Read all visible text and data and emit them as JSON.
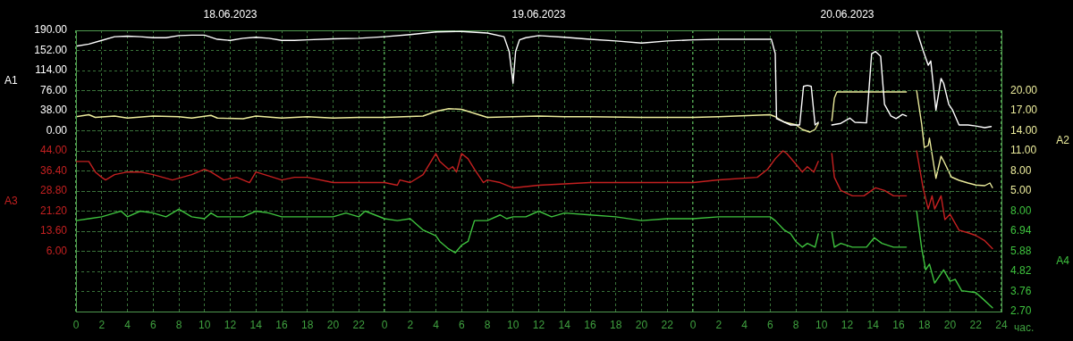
{
  "chart_data": [
    {
      "type": "line",
      "xlabel": "час.",
      "ylabel": "A1",
      "y2label": "A2",
      "xlim": [
        "2023-06-18T00:00",
        "2023-06-21T00:00"
      ],
      "xticks": [
        {
          "value": "2023-06-18T00:00",
          "label": "0"
        },
        {
          "value": "2023-06-18T02:00",
          "label": "2"
        },
        {
          "value": "2023-06-18T04:00",
          "label": "4"
        },
        {
          "value": "2023-06-18T06:00",
          "label": "6"
        },
        {
          "value": "2023-06-18T08:00",
          "label": "8"
        },
        {
          "value": "2023-06-18T10:00",
          "label": "10"
        },
        {
          "value": "2023-06-18T12:00",
          "label": "12"
        },
        {
          "value": "2023-06-18T14:00",
          "label": "14"
        },
        {
          "value": "2023-06-18T16:00",
          "label": "16"
        },
        {
          "value": "2023-06-18T18:00",
          "label": "18"
        },
        {
          "value": "2023-06-18T20:00",
          "label": "20"
        },
        {
          "value": "2023-06-18T22:00",
          "label": "22"
        },
        {
          "value": "2023-06-19T00:00",
          "label": "0"
        },
        {
          "value": "2023-06-19T02:00",
          "label": "2"
        },
        {
          "value": "2023-06-19T04:00",
          "label": "4"
        },
        {
          "value": "2023-06-19T06:00",
          "label": "6"
        },
        {
          "value": "2023-06-19T08:00",
          "label": "8"
        },
        {
          "value": "2023-06-19T10:00",
          "label": "10"
        },
        {
          "value": "2023-06-19T12:00",
          "label": "12"
        },
        {
          "value": "2023-06-19T14:00",
          "label": "14"
        },
        {
          "value": "2023-06-19T16:00",
          "label": "16"
        },
        {
          "value": "2023-06-19T18:00",
          "label": "18"
        },
        {
          "value": "2023-06-19T20:00",
          "label": "20"
        },
        {
          "value": "2023-06-19T22:00",
          "label": "22"
        },
        {
          "value": "2023-06-20T00:00",
          "label": "0"
        },
        {
          "value": "2023-06-20T02:00",
          "label": "2"
        },
        {
          "value": "2023-06-20T04:00",
          "label": "4"
        },
        {
          "value": "2023-06-20T06:00",
          "label": "6"
        },
        {
          "value": "2023-06-20T08:00",
          "label": "8"
        },
        {
          "value": "2023-06-20T10:00",
          "label": "10"
        },
        {
          "value": "2023-06-20T12:00",
          "label": "12"
        },
        {
          "value": "2023-06-20T14:00",
          "label": "14"
        },
        {
          "value": "2023-06-20T16:00",
          "label": "16"
        },
        {
          "value": "2023-06-20T18:00",
          "label": "18"
        },
        {
          "value": "2023-06-20T20:00",
          "label": "20"
        },
        {
          "value": "2023-06-20T22:00",
          "label": "22"
        },
        {
          "value": "2023-06-21T00:00",
          "label": "24"
        }
      ],
      "x2lim": [
        "2023-06-18T00:00",
        "2023-06-21T00:00"
      ],
      "x2ticks": [
        {
          "value": "2023-06-18T12:00",
          "label": "18.06.2023"
        },
        {
          "value": "2023-06-19T12:00",
          "label": "19.06.2023"
        },
        {
          "value": "2023-06-20T12:00",
          "label": "20.06.2023"
        }
      ],
      "ylim": [
        -342,
        190
      ],
      "yticks": [
        {
          "value": 190,
          "label": "190.00"
        },
        {
          "value": 152,
          "label": "152.00"
        },
        {
          "value": 114,
          "label": "114.00"
        },
        {
          "value": 76,
          "label": "76.00"
        },
        {
          "value": 38,
          "label": "38.00"
        },
        {
          "value": 0,
          "label": "0.00"
        }
      ],
      "y2lim": [
        -13,
        29
      ],
      "y2ticks": [
        {
          "value": 20,
          "label": "20.00"
        },
        {
          "value": 17,
          "label": "17.00"
        },
        {
          "value": 14,
          "label": "14.00"
        },
        {
          "value": 11,
          "label": "11.00"
        },
        {
          "value": 8,
          "label": "8.00"
        },
        {
          "value": 5,
          "label": "5.00"
        }
      ],
      "grid": true,
      "marker": "none",
      "line_style": "solid",
      "series": [
        {
          "color": "#ffffff",
          "x": [
            "2023-06-18T00:00",
            "2023-06-18T01:00",
            "2023-06-18T02:00",
            "2023-06-18T03:00",
            "2023-06-18T04:00",
            "2023-06-18T05:00",
            "2023-06-18T06:00",
            "2023-06-18T07:00",
            "2023-06-18T08:00",
            "2023-06-18T09:00",
            "2023-06-18T10:00",
            "2023-06-18T11:00",
            "2023-06-18T12:00",
            "2023-06-18T13:00",
            "2023-06-18T14:00",
            "2023-06-18T15:00",
            "2023-06-18T16:00",
            "2023-06-18T17:00",
            "2023-06-18T18:00",
            "2023-06-18T20:00",
            "2023-06-18T22:00",
            "2023-06-19T00:00",
            "2023-06-19T02:00",
            "2023-06-19T04:00",
            "2023-06-19T06:00",
            "2023-06-19T08:00",
            "2023-06-19T09:18",
            "2023-06-19T09:42",
            "2023-06-19T10:00",
            "2023-06-19T10:12",
            "2023-06-19T10:30",
            "2023-06-19T11:00",
            "2023-06-19T12:00",
            "2023-06-19T14:00",
            "2023-06-19T16:00",
            "2023-06-19T18:00",
            "2023-06-19T20:00",
            "2023-06-19T22:00",
            "2023-06-20T00:00",
            "2023-06-20T02:00",
            "2023-06-20T06:06",
            "2023-06-20T06:24",
            "2023-06-20T06:30",
            "2023-06-20T07:36",
            "2023-06-20T08:18",
            "2023-06-20T08:36",
            "2023-06-20T08:54",
            "2023-06-20T09:12",
            "2023-06-20T09:30",
            "2023-06-20T09:45",
            "2023-06-20T10:12",
            "2023-06-20T10:48",
            "2023-06-20T11:30",
            "2023-06-20T12:12",
            "2023-06-20T12:36",
            "2023-06-20T13:30",
            "2023-06-20T13:54",
            "2023-06-20T14:12",
            "2023-06-20T14:36",
            "2023-06-20T14:54",
            "2023-06-20T15:24",
            "2023-06-20T15:48",
            "2023-06-20T16:18",
            "2023-06-20T16:36",
            "2023-06-20T17:00",
            "2023-06-20T17:24",
            "2023-06-20T17:54",
            "2023-06-20T18:18",
            "2023-06-20T18:30",
            "2023-06-20T18:54",
            "2023-06-20T19:18",
            "2023-06-20T19:30",
            "2023-06-20T19:54",
            "2023-06-20T20:12",
            "2023-06-20T20:42",
            "2023-06-20T21:24",
            "2023-06-20T22:00",
            "2023-06-20T22:42",
            "2023-06-20T23:12"
          ],
          "values": [
            160,
            164,
            171,
            178,
            179,
            178,
            176,
            176,
            180,
            181,
            181,
            173,
            171,
            175,
            177,
            175,
            171,
            171,
            172,
            174,
            175,
            178,
            182,
            187,
            188,
            185,
            178,
            150,
            90,
            150,
            172,
            176,
            180,
            177,
            173,
            170,
            166,
            170,
            172,
            173,
            173,
            146,
            23,
            11,
            11,
            84,
            86,
            84,
            11,
            16,
            null,
            11,
            14,
            24,
            16,
            15,
            146,
            150,
            141,
            50,
            28,
            23,
            31,
            28,
            null,
            190,
            152,
            124,
            132,
            39,
            99,
            90,
            50,
            39,
            11,
            11,
            9,
            6,
            8
          ]
        },
        {
          "axis": "y2",
          "color": "#ecec9c",
          "x": [
            "2023-06-18T00:00",
            "2023-06-18T01:00",
            "2023-06-18T01:30",
            "2023-06-18T03:00",
            "2023-06-18T04:00",
            "2023-06-18T06:00",
            "2023-06-18T08:00",
            "2023-06-18T09:00",
            "2023-06-18T10:30",
            "2023-06-18T11:00",
            "2023-06-18T13:00",
            "2023-06-18T14:00",
            "2023-06-18T16:00",
            "2023-06-18T18:00",
            "2023-06-18T20:00",
            "2023-06-18T22:00",
            "2023-06-19T00:00",
            "2023-06-19T03:00",
            "2023-06-19T04:00",
            "2023-06-19T05:00",
            "2023-06-19T06:00",
            "2023-06-19T07:00",
            "2023-06-19T08:00",
            "2023-06-19T10:00",
            "2023-06-19T12:00",
            "2023-06-19T14:00",
            "2023-06-19T16:00",
            "2023-06-19T20:00",
            "2023-06-20T00:00",
            "2023-06-20T02:00",
            "2023-06-20T06:00",
            "2023-06-20T06:24",
            "2023-06-20T07:06",
            "2023-06-20T08:00",
            "2023-06-20T08:30",
            "2023-06-20T09:06",
            "2023-06-20T09:30",
            "2023-06-20T09:45",
            "2023-06-20T10:12",
            "2023-06-20T10:48",
            "2023-06-20T11:00",
            "2023-06-20T11:12",
            "2023-06-20T16:36",
            "2023-06-20T17:00",
            "2023-06-20T17:24",
            "2023-06-20T17:48",
            "2023-06-20T18:00",
            "2023-06-20T18:18",
            "2023-06-20T18:24",
            "2023-06-20T18:54",
            "2023-06-20T19:18",
            "2023-06-20T19:30",
            "2023-06-20T20:06",
            "2023-06-20T20:42",
            "2023-06-20T21:24",
            "2023-06-20T22:00",
            "2023-06-20T22:42",
            "2023-06-20T23:06",
            "2023-06-20T23:18"
          ],
          "values": [
            16.1,
            16.4,
            16.0,
            16.2,
            15.9,
            16.2,
            16.1,
            15.9,
            16.3,
            15.9,
            15.8,
            16.2,
            15.9,
            16.1,
            15.9,
            16.0,
            16.0,
            16.2,
            16.9,
            17.3,
            17.2,
            16.6,
            16.0,
            16.1,
            16.2,
            16.1,
            16.1,
            16.0,
            16.0,
            16.1,
            16.4,
            16.1,
            15.3,
            14.9,
            14.2,
            13.8,
            14.2,
            15.1,
            null,
            15.5,
            18.9,
            19.8,
            19.8,
            null,
            20,
            14.9,
            11.5,
            11.8,
            12.9,
            6.9,
            10.2,
            9.5,
            7.1,
            6.6,
            6.2,
            5.9,
            5.8,
            6.2,
            5.5
          ]
        }
      ]
    },
    {
      "type": "line",
      "ylabel": "A3",
      "y2label": "A4",
      "tick_labels": "y",
      "xlim": [
        "2023-06-18T00:00",
        "2023-06-21T00:00"
      ],
      "ylim": [
        -16.8,
        89.6
      ],
      "yticks": [
        {
          "value": 44,
          "label": "44.00"
        },
        {
          "value": 36.4,
          "label": "36.40"
        },
        {
          "value": 28.8,
          "label": "28.80"
        },
        {
          "value": 21.2,
          "label": "21.20"
        },
        {
          "value": 13.6,
          "label": "13.60"
        },
        {
          "value": 6,
          "label": "6.00"
        }
      ],
      "y2lim": [
        2.7,
        17.54
      ],
      "y2ticks": [
        {
          "value": 8,
          "label": "8.00"
        },
        {
          "value": 6.94,
          "label": "6.94"
        },
        {
          "value": 5.88,
          "label": "5.88"
        },
        {
          "value": 4.82,
          "label": "4.82"
        },
        {
          "value": 3.76,
          "label": "3.76"
        },
        {
          "value": 2.7,
          "label": "2.70"
        }
      ],
      "grid": "y",
      "marker": "none",
      "line_style": "solid",
      "series": [
        {
          "color": "#c42020",
          "x": [
            "2023-06-18T00:00",
            "2023-06-18T01:00",
            "2023-06-18T01:30",
            "2023-06-18T02:00",
            "2023-06-18T02:18",
            "2023-06-18T03:00",
            "2023-06-18T04:00",
            "2023-06-18T05:00",
            "2023-06-18T06:00",
            "2023-06-18T07:30",
            "2023-06-18T09:00",
            "2023-06-18T10:00",
            "2023-06-18T10:30",
            "2023-06-18T11:30",
            "2023-06-18T12:30",
            "2023-06-18T13:30",
            "2023-06-18T14:00",
            "2023-06-18T16:00",
            "2023-06-18T17:00",
            "2023-06-18T18:00",
            "2023-06-18T20:00",
            "2023-06-18T22:00",
            "2023-06-19T00:00",
            "2023-06-19T01:00",
            "2023-06-19T01:12",
            "2023-06-19T02:00",
            "2023-06-19T03:00",
            "2023-06-19T04:00",
            "2023-06-19T04:18",
            "2023-06-19T05:00",
            "2023-06-19T05:18",
            "2023-06-19T05:36",
            "2023-06-19T06:00",
            "2023-06-19T06:30",
            "2023-06-19T07:00",
            "2023-06-19T07:42",
            "2023-06-19T08:00",
            "2023-06-19T09:00",
            "2023-06-19T10:00",
            "2023-06-19T12:00",
            "2023-06-19T16:00",
            "2023-06-19T20:00",
            "2023-06-20T00:00",
            "2023-06-20T02:00",
            "2023-06-20T05:00",
            "2023-06-20T05:48",
            "2023-06-20T06:24",
            "2023-06-20T07:00",
            "2023-06-20T07:18",
            "2023-06-20T08:00",
            "2023-06-20T08:30",
            "2023-06-20T08:54",
            "2023-06-20T09:24",
            "2023-06-20T09:45",
            "2023-06-20T10:12",
            "2023-06-20T10:48",
            "2023-06-20T11:00",
            "2023-06-20T11:30",
            "2023-06-20T12:24",
            "2023-06-20T13:18",
            "2023-06-20T14:12",
            "2023-06-20T14:54",
            "2023-06-20T15:36",
            "2023-06-20T16:36",
            "2023-06-20T17:00",
            "2023-06-20T17:24",
            "2023-06-20T17:54",
            "2023-06-20T18:18",
            "2023-06-20T18:36",
            "2023-06-20T18:48",
            "2023-06-20T19:18",
            "2023-06-20T19:36",
            "2023-06-20T20:00",
            "2023-06-20T20:42",
            "2023-06-20T21:24",
            "2023-06-20T22:00",
            "2023-06-20T22:42",
            "2023-06-20T23:18"
          ],
          "values": [
            40,
            40,
            36,
            34,
            33,
            35,
            36,
            36,
            35,
            33,
            35,
            37,
            36,
            33,
            34,
            32,
            36,
            33,
            34,
            34,
            32,
            32,
            32,
            31,
            33,
            32,
            35,
            43,
            40,
            37,
            38,
            36,
            43,
            41,
            37,
            32,
            33,
            32,
            30,
            31,
            32,
            32,
            32,
            33,
            34,
            37,
            41,
            44,
            43,
            39,
            36,
            38,
            36,
            40,
            null,
            43,
            34,
            29,
            27,
            27,
            30,
            29,
            27,
            27,
            null,
            44,
            30,
            22,
            27,
            22,
            27,
            18,
            20,
            14,
            13,
            12,
            10,
            7
          ]
        },
        {
          "axis": "y2",
          "color": "#3ec23e",
          "x": [
            "2023-06-18T00:00",
            "2023-06-18T01:00",
            "2023-06-18T02:00",
            "2023-06-18T03:00",
            "2023-06-18T03:30",
            "2023-06-18T04:00",
            "2023-06-18T05:00",
            "2023-06-18T06:00",
            "2023-06-18T07:00",
            "2023-06-18T08:00",
            "2023-06-18T09:00",
            "2023-06-18T10:00",
            "2023-06-18T10:30",
            "2023-06-18T11:00",
            "2023-06-18T13:00",
            "2023-06-18T14:00",
            "2023-06-18T15:00",
            "2023-06-18T16:00",
            "2023-06-18T20:00",
            "2023-06-18T21:00",
            "2023-06-18T22:00",
            "2023-06-18T22:30",
            "2023-06-19T00:00",
            "2023-06-19T01:00",
            "2023-06-19T02:00",
            "2023-06-19T03:00",
            "2023-06-19T04:00",
            "2023-06-19T04:18",
            "2023-06-19T05:00",
            "2023-06-19T05:30",
            "2023-06-19T06:00",
            "2023-06-19T06:30",
            "2023-06-19T07:00",
            "2023-06-19T08:00",
            "2023-06-19T09:00",
            "2023-06-19T09:30",
            "2023-06-19T10:00",
            "2023-06-19T11:00",
            "2023-06-19T12:00",
            "2023-06-19T13:00",
            "2023-06-19T14:00",
            "2023-06-19T16:00",
            "2023-06-19T18:00",
            "2023-06-19T20:00",
            "2023-06-19T22:00",
            "2023-06-20T00:00",
            "2023-06-20T02:00",
            "2023-06-20T06:00",
            "2023-06-20T06:24",
            "2023-06-20T07:06",
            "2023-06-20T07:36",
            "2023-06-20T08:00",
            "2023-06-20T08:30",
            "2023-06-20T08:54",
            "2023-06-20T09:30",
            "2023-06-20T09:45",
            "2023-06-20T10:12",
            "2023-06-20T10:48",
            "2023-06-20T11:00",
            "2023-06-20T11:30",
            "2023-06-20T12:24",
            "2023-06-20T13:30",
            "2023-06-20T14:06",
            "2023-06-20T14:42",
            "2023-06-20T15:36",
            "2023-06-20T16:36",
            "2023-06-20T17:00",
            "2023-06-20T17:24",
            "2023-06-20T17:48",
            "2023-06-20T18:06",
            "2023-06-20T18:24",
            "2023-06-20T18:48",
            "2023-06-20T19:30",
            "2023-06-20T20:00",
            "2023-06-20T20:24",
            "2023-06-20T20:54",
            "2023-06-20T22:00",
            "2023-06-20T22:30",
            "2023-06-20T23:18"
          ],
          "values": [
            7.5,
            7.6,
            7.7,
            7.9,
            8.0,
            7.7,
            8.0,
            7.9,
            7.7,
            8.1,
            7.7,
            7.6,
            7.9,
            7.7,
            7.7,
            8.0,
            7.9,
            7.7,
            7.7,
            7.9,
            7.7,
            8.0,
            7.6,
            7.5,
            7.6,
            7.0,
            6.7,
            6.4,
            6.0,
            5.8,
            6.2,
            6.4,
            7.5,
            7.5,
            7.8,
            7.6,
            7.7,
            7.7,
            8.0,
            7.7,
            7.9,
            7.8,
            7.7,
            7.5,
            7.6,
            7.6,
            7.7,
            7.7,
            7.5,
            7.0,
            6.8,
            6.4,
            6.1,
            6.3,
            6.1,
            6.8,
            null,
            6.9,
            6.1,
            6.3,
            6.1,
            6.1,
            6.6,
            6.3,
            6.1,
            6.1,
            null,
            8.0,
            6.0,
            4.9,
            5.2,
            4.2,
            4.9,
            4.3,
            4.4,
            3.8,
            3.7,
            3.4,
            2.9
          ]
        }
      ]
    }
  ]
}
